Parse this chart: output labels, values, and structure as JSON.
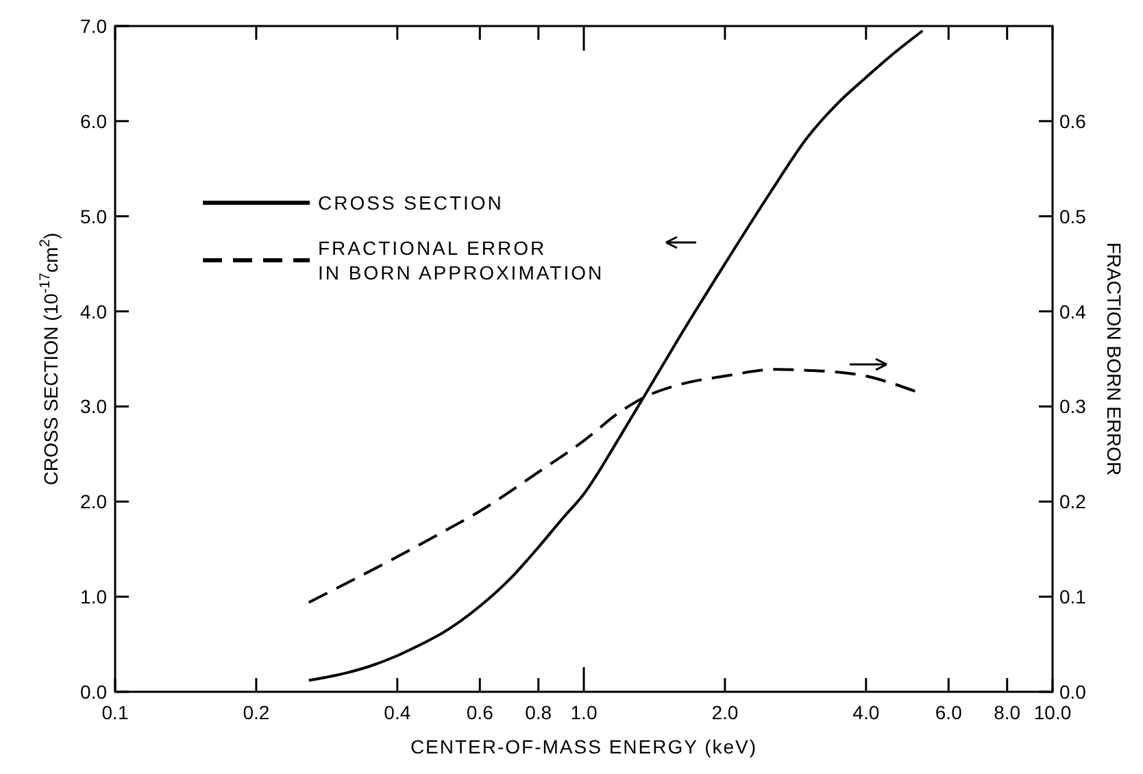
{
  "chart_data": {
    "type": "line",
    "xlabel": "CENTER-OF-MASS ENERGY (keV)",
    "ylabel": "CROSS SECTION (10$^{-17}$cm$^{2}$)",
    "y2label": "FRACTION BORN ERROR",
    "log": "x",
    "xlim": [
      0.1,
      10
    ],
    "xticks": [
      0.1,
      0.2,
      0.4,
      0.6,
      0.8,
      {
        "value": 1,
        "label": "1.0"
      },
      {
        "value": 2,
        "label": "2.0"
      },
      {
        "value": 4,
        "label": "4.0"
      },
      {
        "value": 6,
        "label": "6.0"
      },
      {
        "value": 8,
        "label": "8.0"
      },
      {
        "value": 10,
        "label": "10.0"
      }
    ],
    "ylim": [
      0,
      7
    ],
    "yticks": [
      {
        "value": 0,
        "label": "0.0"
      },
      {
        "value": 1,
        "label": "1.0"
      },
      {
        "value": 2,
        "label": "2.0"
      },
      {
        "value": 3,
        "label": "3.0"
      },
      {
        "value": 4,
        "label": "4.0"
      },
      {
        "value": 5,
        "label": "5.0"
      },
      {
        "value": 6,
        "label": "6.0"
      },
      {
        "value": 7,
        "label": "7.0"
      }
    ],
    "y2lim": [
      0,
      0.7
    ],
    "y2ticks": [
      {
        "value": 0,
        "label": "0.0"
      },
      0.1,
      0.2,
      0.3,
      0.4,
      0.5,
      0.6
    ],
    "legend": "top left",
    "grid": false,
    "marker": "none",
    "series": [
      {
        "name": "CROSS SECTION",
        "color": "#000000",
        "line_style": "solid",
        "x": [
          0.259,
          0.3,
          0.35,
          0.4,
          0.45,
          0.5,
          0.6,
          0.7,
          0.8,
          0.9,
          1.0,
          1.2,
          1.35,
          1.6,
          2.0,
          2.5,
          3.0,
          3.5,
          4.0,
          4.5,
          5.28
        ],
        "values": [
          0.12,
          0.18,
          0.27,
          0.38,
          0.5,
          0.62,
          0.9,
          1.2,
          1.52,
          1.82,
          2.08,
          2.7,
          3.12,
          3.73,
          4.5,
          5.25,
          5.83,
          6.2,
          6.46,
          6.68,
          6.95
        ]
      },
      {
        "name": "FRACTIONAL ERROR\nIN BORN APPROXIMATION",
        "color": "#000000",
        "line_style": "dashed",
        "axis": "y2",
        "x": [
          0.259,
          0.3,
          0.4,
          0.5,
          0.6,
          0.8,
          1.0,
          1.2,
          1.35,
          1.6,
          2.0,
          2.58,
          3.0,
          3.5,
          4.0,
          4.5,
          5.09
        ],
        "values": [
          0.094,
          0.11,
          0.142,
          0.168,
          0.19,
          0.231,
          0.264,
          0.295,
          0.31,
          0.323,
          0.332,
          0.339,
          0.338,
          0.336,
          0.332,
          0.325,
          0.316
        ]
      }
    ]
  }
}
